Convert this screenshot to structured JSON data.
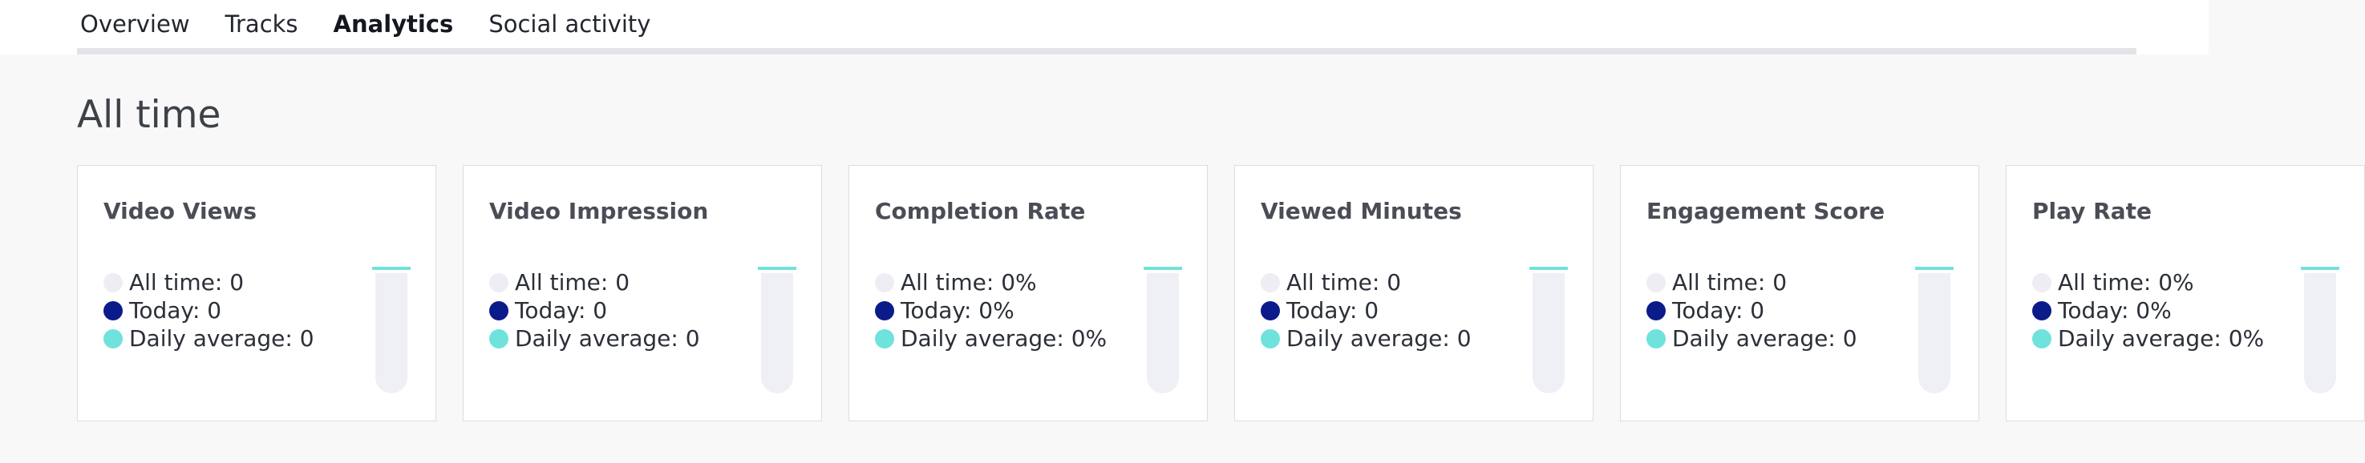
{
  "tabs": [
    {
      "label": "Overview",
      "active": false
    },
    {
      "label": "Tracks",
      "active": false
    },
    {
      "label": "Analytics",
      "active": true
    },
    {
      "label": "Social activity",
      "active": false
    }
  ],
  "section_title": "All time",
  "legend_colors": {
    "all_time": "#ededf3",
    "today": "#0c1b8a",
    "daily_average": "#6fe2dc"
  },
  "accent_color": "#0f2fa8",
  "cards": [
    {
      "title": "Video Views",
      "all_time": "All time: 0",
      "today": "Today: 0",
      "daily_average": "Daily average: 0"
    },
    {
      "title": "Video Impression",
      "all_time": "All time: 0",
      "today": "Today: 0",
      "daily_average": "Daily average: 0"
    },
    {
      "title": "Completion Rate",
      "all_time": "All time: 0%",
      "today": "Today: 0%",
      "daily_average": "Daily average: 0%"
    },
    {
      "title": "Viewed Minutes",
      "all_time": "All time: 0",
      "today": "Today: 0",
      "daily_average": "Daily average: 0"
    },
    {
      "title": "Engagement Score",
      "all_time": "All time: 0",
      "today": "Today: 0",
      "daily_average": "Daily average: 0"
    },
    {
      "title": "Play Rate",
      "all_time": "All time: 0%",
      "today": "Today: 0%",
      "daily_average": "Daily average: 0%"
    }
  ]
}
